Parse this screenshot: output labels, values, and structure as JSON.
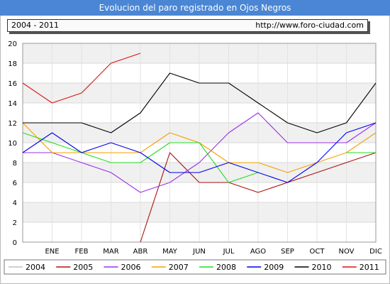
{
  "header": {
    "title": "Evolucion del paro registrado en Ojos Negros",
    "range_label": "2004 - 2011",
    "source_url": "http://www.foro-ciudad.com"
  },
  "chart_data": {
    "type": "line",
    "title": "Evolucion del paro registrado en Ojos Negros",
    "categories": [
      "",
      "ENE",
      "FEB",
      "MAR",
      "ABR",
      "MAY",
      "JUN",
      "JUL",
      "AGO",
      "SEP",
      "OCT",
      "NOV",
      "DIC"
    ],
    "ylim": [
      0,
      20
    ],
    "yticks": [
      0,
      2,
      4,
      6,
      8,
      10,
      12,
      14,
      16,
      18,
      20
    ],
    "grid": true,
    "legend_position": "bottom",
    "series": [
      {
        "name": "2004",
        "color": "#c0c0c0",
        "values": [
          null,
          null,
          null,
          null,
          null,
          null,
          null,
          null,
          null,
          null,
          null,
          null,
          null
        ]
      },
      {
        "name": "2005",
        "color": "#aa1111",
        "values": [
          null,
          null,
          null,
          null,
          0,
          9,
          6,
          6,
          5,
          6,
          7,
          8,
          9
        ]
      },
      {
        "name": "2006",
        "color": "#9a30e8",
        "values": [
          9,
          9,
          8,
          7,
          5,
          6,
          8,
          11,
          13,
          10,
          10,
          10,
          12
        ]
      },
      {
        "name": "2007",
        "color": "#f5a000",
        "values": [
          12,
          9,
          9,
          9,
          9,
          11,
          10,
          8,
          8,
          7,
          8,
          9,
          11
        ]
      },
      {
        "name": "2008",
        "color": "#22dd22",
        "values": [
          11,
          10,
          9,
          8,
          8,
          10,
          10,
          6,
          7,
          null,
          null,
          9,
          9
        ]
      },
      {
        "name": "2009",
        "color": "#0000ee",
        "values": [
          9,
          11,
          9,
          10,
          9,
          7,
          7,
          8,
          7,
          6,
          8,
          11,
          12
        ]
      },
      {
        "name": "2010",
        "color": "#000000",
        "values": [
          12,
          12,
          12,
          11,
          13,
          17,
          16,
          16,
          14,
          12,
          11,
          12,
          16
        ]
      },
      {
        "name": "2011",
        "color": "#dd1111",
        "values": [
          16,
          14,
          15,
          18,
          19,
          null,
          null,
          null,
          null,
          null,
          null,
          null,
          null
        ]
      }
    ]
  }
}
